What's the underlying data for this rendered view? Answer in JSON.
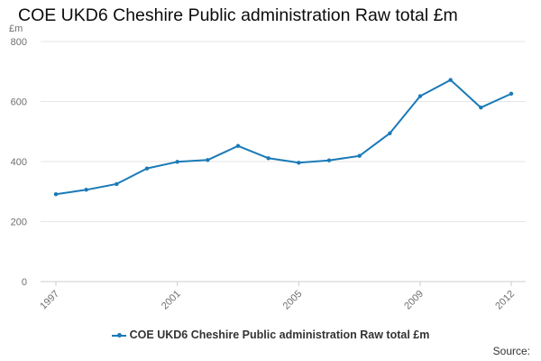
{
  "title": "COE UKD6 Cheshire Public administration Raw total £m",
  "source_label": "Source:",
  "colors": {
    "series": "#1a7ab7",
    "grid": "#e6e6e6",
    "axis_text": "#6f6f6f"
  },
  "chart_data": {
    "type": "line",
    "title": "COE UKD6 Cheshire Public administration Raw total £m",
    "ylabel": "£m",
    "xlabel": "",
    "ylim": [
      0,
      800
    ],
    "yticks": [
      0,
      200,
      400,
      600,
      800
    ],
    "xticks": [
      "1997",
      "2001",
      "2005",
      "2009",
      "2012"
    ],
    "grid": true,
    "legend_position": "bottom",
    "x": [
      1997,
      1998,
      1999,
      2000,
      2001,
      2002,
      2003,
      2004,
      2005,
      2006,
      2007,
      2008,
      2009,
      2010,
      2011,
      2012
    ],
    "series": [
      {
        "name": "COE UKD6 Cheshire Public administration Raw total £m",
        "values": [
          291,
          306,
          325,
          377,
          399,
          405,
          452,
          411,
          396,
          404,
          419,
          494,
          618,
          672,
          580,
          626
        ]
      }
    ]
  }
}
